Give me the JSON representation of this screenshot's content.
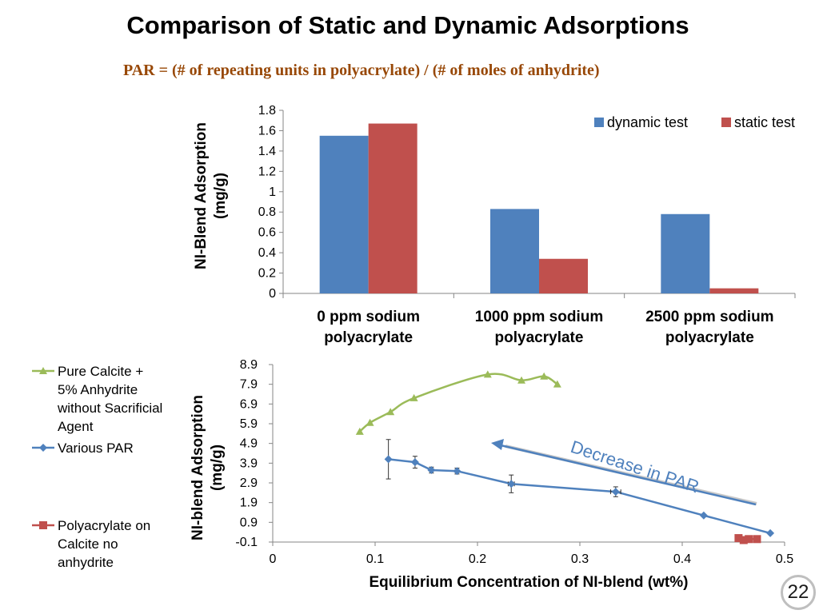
{
  "slide": {
    "title": "Comparison of Static and Dynamic Adsorptions",
    "subtitle": "PAR = (# of repeating units in polyacrylate) / (# of moles of anhydrite)",
    "page_number": "22",
    "arrow_annotation": "Decrease in PAR"
  },
  "colors": {
    "dynamic": "#4f81bd",
    "static": "#c0504d",
    "calcite": "#9bbb59",
    "par": "#4f81bd",
    "polyacrylate": "#c0504d",
    "arrow": "#4f81bd"
  },
  "chart_data": [
    {
      "type": "bar",
      "title": "",
      "ylabel": "NI-Blend Adsorption (mg/g)",
      "ylabel_lines": [
        "NI-Blend Adsorption",
        "(mg/g)"
      ],
      "xlabel": "",
      "categories": [
        "0 ppm sodium polyacrylate",
        "1000 ppm sodium polyacrylate",
        "2500 ppm sodium polyacrylate"
      ],
      "category_lines": [
        [
          "0 ppm sodium",
          "polyacrylate"
        ],
        [
          "1000 ppm sodium",
          "polyacrylate"
        ],
        [
          "2500 ppm sodium",
          "polyacrylate"
        ]
      ],
      "series": [
        {
          "name": "dynamic test",
          "values": [
            1.55,
            0.83,
            0.78
          ]
        },
        {
          "name": "static test",
          "values": [
            1.67,
            0.34,
            0.05
          ]
        }
      ],
      "ylim": [
        0,
        1.8
      ],
      "yticks": [
        "0",
        "0.2",
        "0.4",
        "0.6",
        "0.8",
        "1",
        "1.2",
        "1.4",
        "1.6",
        "1.8"
      ],
      "legend": "top-right",
      "grid": false
    },
    {
      "type": "line",
      "title": "",
      "xlabel": "Equilibrium Concentration of NI-blend (wt%)",
      "ylabel": "NI-blend Adsorption (mg/g)",
      "ylabel_lines": [
        "NI-blend Adsorption",
        "(mg/g)"
      ],
      "xlim": [
        0,
        0.5
      ],
      "ylim": [
        -0.1,
        8.9
      ],
      "xticks": [
        "0",
        "0.1",
        "0.2",
        "0.3",
        "0.4",
        "0.5"
      ],
      "yticks": [
        "-0.1",
        "0.9",
        "1.9",
        "2.9",
        "3.9",
        "4.9",
        "5.9",
        "6.9",
        "7.9",
        "8.9"
      ],
      "legend": "left",
      "grid": false,
      "series": [
        {
          "name": "Pure Calcite + 5% Anhydrite without Sacrificial Agent",
          "legend_lines": [
            "Pure Calcite +",
            "5% Anhydrite",
            "without Sacrificial",
            "Agent"
          ],
          "marker": "triangle",
          "x": [
            0.085,
            0.095,
            0.115,
            0.138,
            0.21,
            0.243,
            0.265,
            0.278
          ],
          "y": [
            5.5,
            5.95,
            6.5,
            7.2,
            8.4,
            8.1,
            8.3,
            7.9
          ]
        },
        {
          "name": "Various PAR",
          "legend_lines": [
            "Various PAR"
          ],
          "marker": "diamond",
          "x": [
            0.113,
            0.139,
            0.155,
            0.18,
            0.233,
            0.335,
            0.421,
            0.486
          ],
          "y": [
            4.1,
            3.95,
            3.55,
            3.5,
            2.85,
            2.45,
            1.25,
            0.35
          ],
          "yerr": [
            1.0,
            0.3,
            0.15,
            0.15,
            0.45,
            0.25,
            0.0,
            0.0
          ],
          "xerr": [
            0.0,
            0.0,
            0.0,
            0.0,
            0.003,
            0.005,
            0.0,
            0.0
          ]
        },
        {
          "name": "Polyacrylate on Calcite no anhydrite",
          "legend_lines": [
            "Polyacrylate on",
            "Calcite no",
            "anhydrite"
          ],
          "marker": "square",
          "x": [
            0.455,
            0.46,
            0.465,
            0.473
          ],
          "y": [
            0.1,
            0.0,
            0.05,
            0.05
          ]
        }
      ]
    }
  ]
}
